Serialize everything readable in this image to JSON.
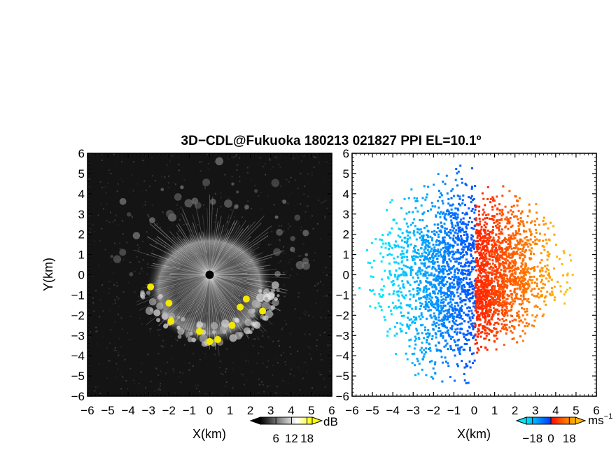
{
  "title": "3D−CDL@Fukuoka 180213 021827 PPI EL=10.1º",
  "chart_data": [
    {
      "type": "heatmap",
      "quantity": "reflectivity",
      "xlabel": "X(km)",
      "ylabel": "Y(km)",
      "xlim": [
        -6,
        6
      ],
      "ylim": [
        -6,
        6
      ],
      "x_ticks": [
        "−6",
        "−5",
        "−4",
        "−3",
        "−2",
        "−1",
        "0",
        "1",
        "2",
        "3",
        "4",
        "5",
        "6"
      ],
      "y_ticks": [
        "−6",
        "−5",
        "−4",
        "−3",
        "−2",
        "−1",
        "0",
        "1",
        "2",
        "3",
        "4",
        "5",
        "6"
      ],
      "colorbar": {
        "unit": "dB",
        "ticks": [
          "6",
          "12",
          "18"
        ],
        "range": [
          0,
          20
        ],
        "colors": [
          "#000000",
          "#ffffff",
          "#ffff00"
        ]
      },
      "radar_origin": [
        0,
        0
      ],
      "echo_ring_center_radius_km": 3.0,
      "high_echo_points_km": [
        [
          -2.0,
          -1.4
        ],
        [
          -1.9,
          -2.3
        ],
        [
          1.1,
          -2.5
        ],
        [
          0.4,
          -3.2
        ],
        [
          0.0,
          -3.3
        ],
        [
          1.8,
          -1.2
        ],
        [
          2.6,
          -1.8
        ],
        [
          -2.9,
          -0.6
        ],
        [
          1.5,
          -1.6
        ],
        [
          -0.5,
          -2.8
        ]
      ]
    },
    {
      "type": "heatmap",
      "quantity": "doppler velocity",
      "xlabel": "X(km)",
      "ylabel": "",
      "xlim": [
        -6,
        6
      ],
      "ylim": [
        -6,
        6
      ],
      "x_ticks": [
        "−6",
        "−5",
        "−4",
        "−3",
        "−2",
        "−1",
        "0",
        "1",
        "2",
        "3",
        "4",
        "5",
        "6"
      ],
      "y_ticks": [
        "−6",
        "−5",
        "−4",
        "−3",
        "−2",
        "−1",
        "0",
        "1",
        "2",
        "3",
        "4",
        "5",
        "6"
      ],
      "colorbar": {
        "unit": "ms",
        "unit_exp": "−1",
        "ticks": [
          "−18",
          "0",
          "18"
        ],
        "range": [
          -24,
          24
        ],
        "colors": [
          "#00e5ff",
          "#0050ff",
          "#ff2000",
          "#ffb800"
        ]
      },
      "flow_direction_deg": 0,
      "negative_color": "#0050ff",
      "positive_color": "#ff2000"
    }
  ]
}
